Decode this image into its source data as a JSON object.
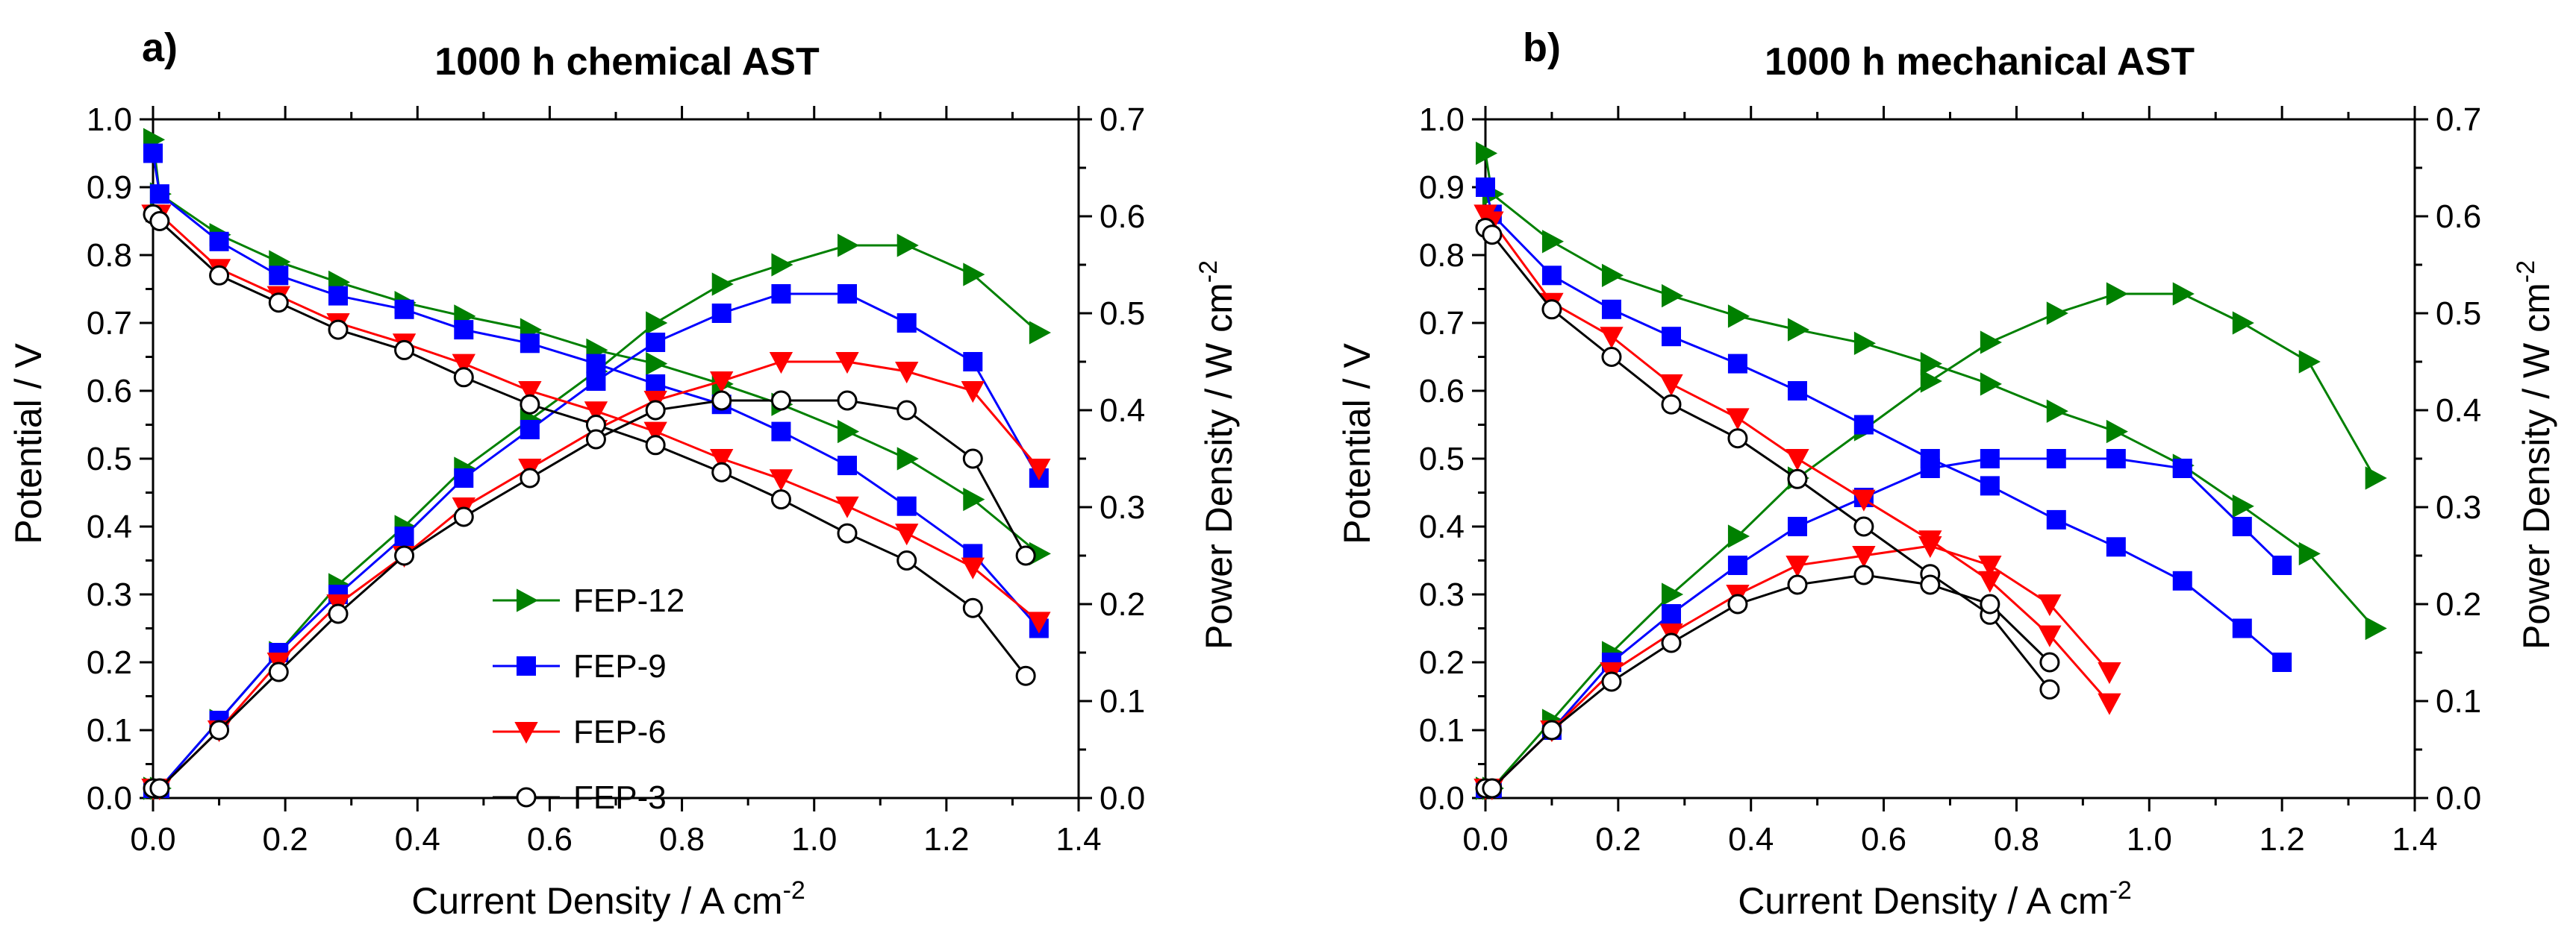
{
  "legend": [
    "FEP-12",
    "FEP-9",
    "FEP-6",
    "FEP-3"
  ],
  "series_styles": [
    {
      "name": "FEP-12",
      "color": "#008000",
      "marker": "triangle-right",
      "filled": true
    },
    {
      "name": "FEP-9",
      "color": "#0000ff",
      "marker": "square",
      "filled": true
    },
    {
      "name": "FEP-6",
      "color": "#ff0000",
      "marker": "triangle-down",
      "filled": true
    },
    {
      "name": "FEP-3",
      "color": "#000000",
      "marker": "circle",
      "filled": false
    }
  ],
  "chart_data": [
    {
      "type": "line",
      "panel_label": "a)",
      "title": "1000 h  chemical AST",
      "xlabel": "Current Density / A cm",
      "xlabel_sup": "-2",
      "ylabel": "Potential / V",
      "y2label": "Power Density / W cm",
      "y2label_sup": "-2",
      "xlim": [
        0.0,
        1.4
      ],
      "ylim": [
        0.0,
        1.0
      ],
      "y2lim": [
        0.0,
        0.7
      ],
      "xticks": [
        "0.0",
        "0.2",
        "0.4",
        "0.6",
        "0.8",
        "1.0",
        "1.2",
        "1.4"
      ],
      "yticks": [
        "0.0",
        "0.1",
        "0.2",
        "0.3",
        "0.4",
        "0.5",
        "0.6",
        "0.7",
        "0.8",
        "0.9",
        "1.0"
      ],
      "y2ticks": [
        "0.0",
        "0.1",
        "0.2",
        "0.3",
        "0.4",
        "0.5",
        "0.6",
        "0.7"
      ],
      "legend_position": "lower-left",
      "series": [
        {
          "name": "FEP-12",
          "x": [
            0.0,
            0.01,
            0.1,
            0.19,
            0.28,
            0.38,
            0.47,
            0.57,
            0.67,
            0.76,
            0.86,
            0.95,
            1.05,
            1.14,
            1.24,
            1.34
          ],
          "potential": [
            0.97,
            0.89,
            0.83,
            0.79,
            0.76,
            0.73,
            0.71,
            0.69,
            0.66,
            0.64,
            0.61,
            0.58,
            0.54,
            0.5,
            0.44,
            0.36
          ],
          "power": [
            0.01,
            0.01,
            0.08,
            0.15,
            0.22,
            0.28,
            0.34,
            0.39,
            0.44,
            0.49,
            0.53,
            0.55,
            0.57,
            0.57,
            0.54,
            0.48
          ]
        },
        {
          "name": "FEP-9",
          "x": [
            0.0,
            0.01,
            0.1,
            0.19,
            0.28,
            0.38,
            0.47,
            0.57,
            0.67,
            0.76,
            0.86,
            0.95,
            1.05,
            1.14,
            1.24,
            1.34
          ],
          "potential": [
            0.95,
            0.89,
            0.82,
            0.77,
            0.74,
            0.72,
            0.69,
            0.67,
            0.64,
            0.61,
            0.58,
            0.54,
            0.49,
            0.43,
            0.36,
            0.25
          ],
          "power": [
            0.01,
            0.01,
            0.08,
            0.15,
            0.21,
            0.27,
            0.33,
            0.38,
            0.43,
            0.47,
            0.5,
            0.52,
            0.52,
            0.49,
            0.45,
            0.33
          ]
        },
        {
          "name": "FEP-6",
          "x": [
            0.0,
            0.01,
            0.1,
            0.19,
            0.28,
            0.38,
            0.47,
            0.57,
            0.67,
            0.76,
            0.86,
            0.95,
            1.05,
            1.14,
            1.24,
            1.34
          ],
          "potential": [
            0.86,
            0.86,
            0.78,
            0.74,
            0.7,
            0.67,
            0.64,
            0.6,
            0.57,
            0.54,
            0.5,
            0.47,
            0.43,
            0.39,
            0.34,
            0.26
          ],
          "power": [
            0.01,
            0.01,
            0.07,
            0.14,
            0.2,
            0.25,
            0.3,
            0.34,
            0.38,
            0.41,
            0.43,
            0.45,
            0.45,
            0.44,
            0.42,
            0.34
          ]
        },
        {
          "name": "FEP-3",
          "x": [
            0.0,
            0.01,
            0.1,
            0.19,
            0.28,
            0.38,
            0.47,
            0.57,
            0.67,
            0.76,
            0.86,
            0.95,
            1.05,
            1.14,
            1.24,
            1.32
          ],
          "potential": [
            0.86,
            0.85,
            0.77,
            0.73,
            0.69,
            0.66,
            0.62,
            0.58,
            0.55,
            0.52,
            0.48,
            0.44,
            0.39,
            0.35,
            0.28,
            0.18
          ],
          "power": [
            0.01,
            0.01,
            0.07,
            0.13,
            0.19,
            0.25,
            0.29,
            0.33,
            0.37,
            0.4,
            0.41,
            0.41,
            0.41,
            0.4,
            0.35,
            0.25
          ]
        }
      ]
    },
    {
      "type": "line",
      "panel_label": "b)",
      "title": "1000 h  mechanical AST",
      "xlabel": "Current Density / A cm",
      "xlabel_sup": "-2",
      "ylabel": "Potential / V",
      "y2label": "Power Density / W cm",
      "y2label_sup": "-2",
      "xlim": [
        0.0,
        1.4
      ],
      "ylim": [
        0.0,
        1.0
      ],
      "y2lim": [
        0.0,
        0.7
      ],
      "xticks": [
        "0.0",
        "0.2",
        "0.4",
        "0.6",
        "0.8",
        "1.0",
        "1.2",
        "1.4"
      ],
      "yticks": [
        "0.0",
        "0.1",
        "0.2",
        "0.3",
        "0.4",
        "0.5",
        "0.6",
        "0.7",
        "0.8",
        "0.9",
        "1.0"
      ],
      "y2ticks": [
        "0.0",
        "0.1",
        "0.2",
        "0.3",
        "0.4",
        "0.5",
        "0.6",
        "0.7"
      ],
      "series": [
        {
          "name": "FEP-12",
          "x": [
            0.0,
            0.01,
            0.1,
            0.19,
            0.28,
            0.38,
            0.47,
            0.57,
            0.67,
            0.76,
            0.86,
            0.95,
            1.05,
            1.14,
            1.24,
            1.34
          ],
          "potential": [
            0.95,
            0.89,
            0.82,
            0.77,
            0.74,
            0.71,
            0.69,
            0.67,
            0.64,
            0.61,
            0.57,
            0.54,
            0.49,
            0.43,
            0.36,
            0.25
          ],
          "power": [
            0.01,
            0.01,
            0.08,
            0.15,
            0.21,
            0.27,
            0.33,
            0.38,
            0.43,
            0.47,
            0.5,
            0.52,
            0.52,
            0.49,
            0.45,
            0.33
          ]
        },
        {
          "name": "FEP-9",
          "x": [
            0.0,
            0.01,
            0.1,
            0.19,
            0.28,
            0.38,
            0.47,
            0.57,
            0.67,
            0.76,
            0.86,
            0.95,
            1.05,
            1.14,
            1.2
          ],
          "potential": [
            0.9,
            0.86,
            0.77,
            0.72,
            0.68,
            0.64,
            0.6,
            0.55,
            0.5,
            0.46,
            0.41,
            0.37,
            0.32,
            0.25,
            0.2
          ],
          "power": [
            0.01,
            0.01,
            0.07,
            0.14,
            0.19,
            0.24,
            0.28,
            0.31,
            0.34,
            0.35,
            0.35,
            0.35,
            0.34,
            0.28,
            0.24
          ]
        },
        {
          "name": "FEP-6",
          "x": [
            0.0,
            0.01,
            0.1,
            0.19,
            0.28,
            0.38,
            0.47,
            0.57,
            0.67,
            0.76,
            0.85,
            0.94
          ],
          "potential": [
            0.86,
            0.85,
            0.73,
            0.68,
            0.61,
            0.56,
            0.5,
            0.44,
            0.38,
            0.32,
            0.24,
            0.14
          ],
          "power": [
            0.01,
            0.01,
            0.07,
            0.13,
            0.17,
            0.21,
            0.24,
            0.25,
            0.26,
            0.24,
            0.2,
            0.13
          ]
        },
        {
          "name": "FEP-3",
          "x": [
            0.0,
            0.01,
            0.1,
            0.19,
            0.28,
            0.38,
            0.47,
            0.57,
            0.67,
            0.76,
            0.85
          ],
          "potential": [
            0.84,
            0.83,
            0.72,
            0.65,
            0.58,
            0.53,
            0.47,
            0.4,
            0.33,
            0.27,
            0.16
          ],
          "power": [
            0.01,
            0.01,
            0.07,
            0.12,
            0.16,
            0.2,
            0.22,
            0.23,
            0.22,
            0.2,
            0.14
          ]
        }
      ]
    }
  ]
}
